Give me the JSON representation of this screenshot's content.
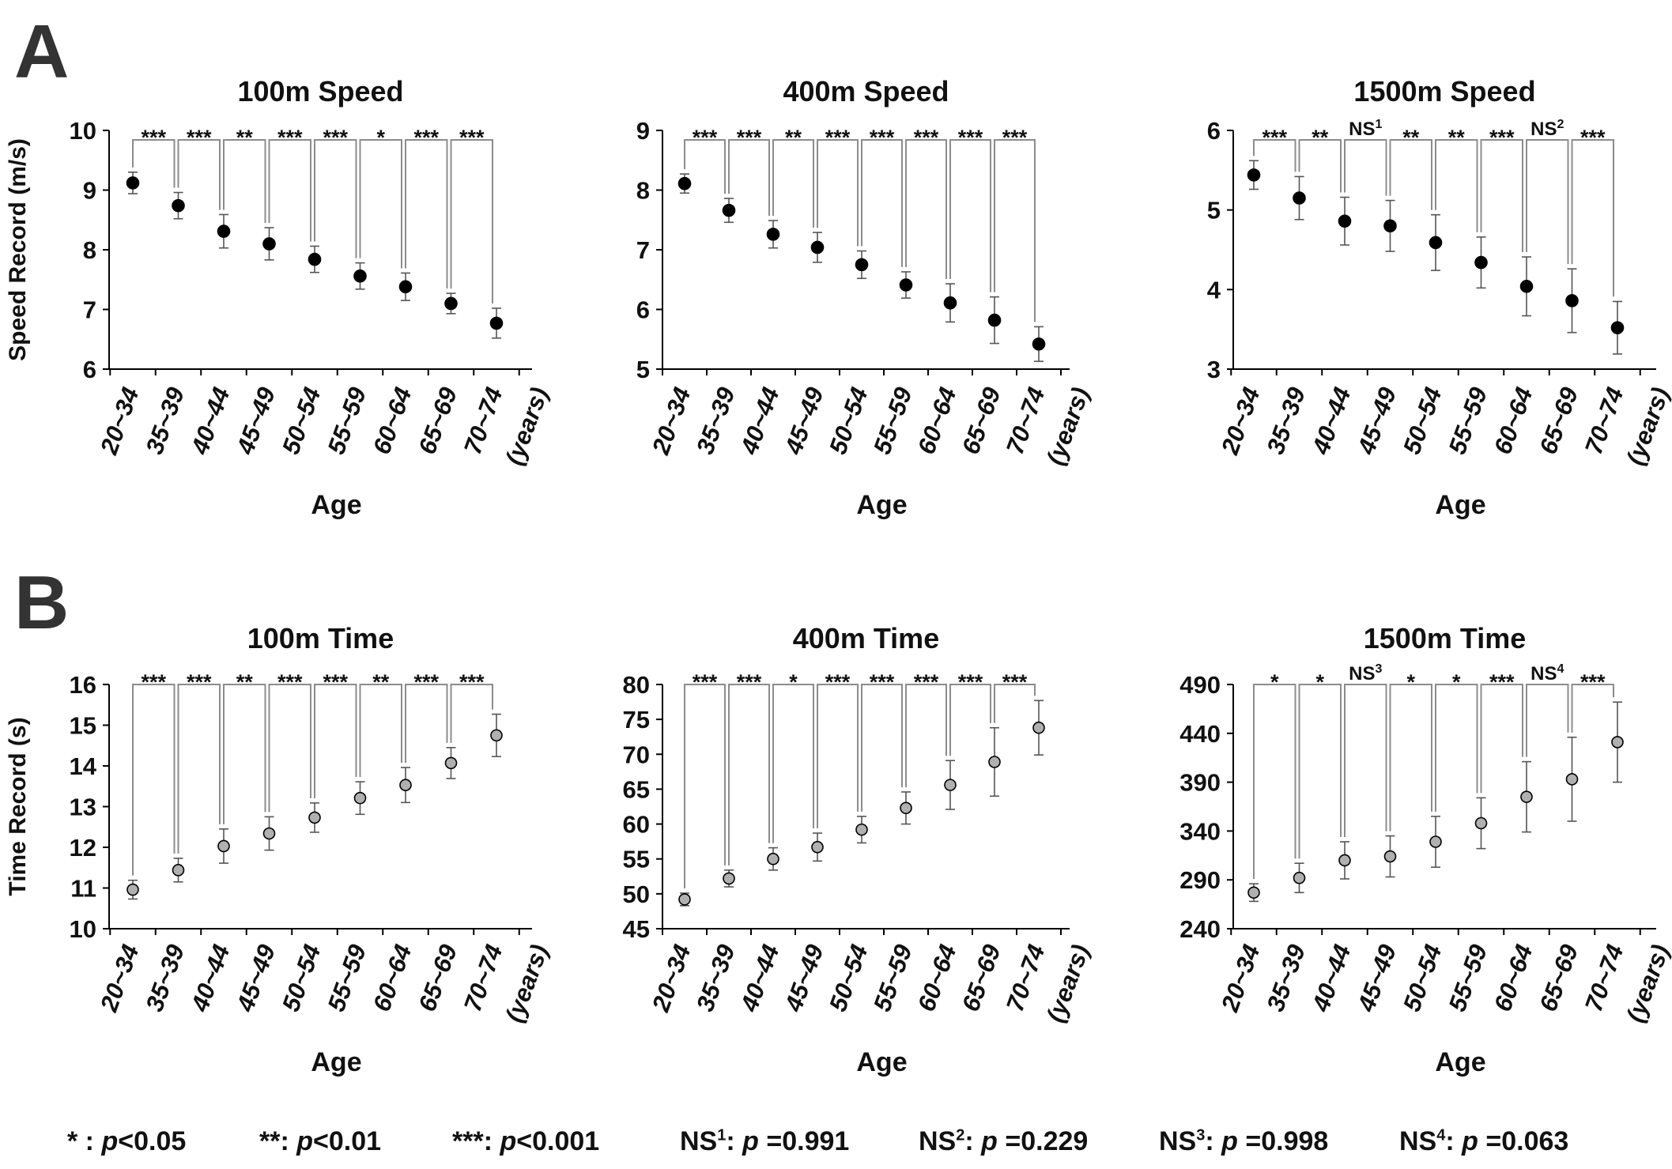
{
  "panels": {
    "A": "A",
    "B": "B"
  },
  "x_tick_labels": [
    "20~34",
    "35~39",
    "40~44",
    "45~49",
    "50~54",
    "55~59",
    "60~64",
    "65~69",
    "70~74",
    "(years)"
  ],
  "xlabel": "Age",
  "colors": {
    "speed_marker": "#000000",
    "time_marker": "#b0b0b0",
    "bracket": "#8c8c8c",
    "text": "#111111"
  },
  "footnote": [
    {
      "label": "* : ",
      "p": "p",
      "value": "<0.05"
    },
    {
      "label": "**: ",
      "p": "p",
      "value": "<0.01"
    },
    {
      "label": "***: ",
      "p": "p",
      "value": "<0.001"
    },
    {
      "label": "NS",
      "sup": "1",
      "tail": ": ",
      "p": "p",
      "value": " =0.991"
    },
    {
      "label": "NS",
      "sup": "2",
      "tail": ": ",
      "p": "p",
      "value": " =0.229"
    },
    {
      "label": "NS",
      "sup": "3",
      "tail": ": ",
      "p": "p",
      "value": " =0.998"
    },
    {
      "label": "NS",
      "sup": "4",
      "tail": ": ",
      "p": "p",
      "value": " =0.063"
    }
  ],
  "chart_data": [
    {
      "type": "scatter",
      "title": "100m Speed",
      "ylabel": "Speed Record (m/s)",
      "xlabel": "Age",
      "categories": [
        "20~34",
        "35~39",
        "40~44",
        "45~49",
        "50~54",
        "55~59",
        "60~64",
        "65~69",
        "70~74"
      ],
      "ylim": [
        6,
        10
      ],
      "yticks": [
        6,
        7,
        8,
        9,
        10
      ],
      "marker": "filled-black",
      "values": [
        9.12,
        8.74,
        8.31,
        8.1,
        7.84,
        7.56,
        7.38,
        7.1,
        6.77
      ],
      "error": [
        0.18,
        0.22,
        0.28,
        0.27,
        0.22,
        0.22,
        0.23,
        0.17,
        0.25
      ],
      "significance": [
        "***",
        "***",
        "**",
        "***",
        "***",
        "*",
        "***",
        "***"
      ]
    },
    {
      "type": "scatter",
      "title": "400m Speed",
      "ylabel": "",
      "xlabel": "Age",
      "categories": [
        "20~34",
        "35~39",
        "40~44",
        "45~49",
        "50~54",
        "55~59",
        "60~64",
        "65~69",
        "70~74"
      ],
      "ylim": [
        5,
        9
      ],
      "yticks": [
        5,
        6,
        7,
        8,
        9
      ],
      "marker": "filled-black",
      "values": [
        8.11,
        7.66,
        7.26,
        7.04,
        6.75,
        6.41,
        6.11,
        5.82,
        5.42
      ],
      "error": [
        0.16,
        0.2,
        0.23,
        0.25,
        0.23,
        0.22,
        0.32,
        0.39,
        0.29
      ],
      "significance": [
        "***",
        "***",
        "**",
        "***",
        "***",
        "***",
        "***",
        "***"
      ]
    },
    {
      "type": "scatter",
      "title": "1500m Speed",
      "ylabel": "",
      "xlabel": "Age",
      "categories": [
        "20~34",
        "35~39",
        "40~44",
        "45~49",
        "50~54",
        "55~59",
        "60~64",
        "65~69",
        "70~74"
      ],
      "ylim": [
        3,
        6
      ],
      "yticks": [
        3,
        4,
        5,
        6
      ],
      "marker": "filled-black",
      "values": [
        5.44,
        5.15,
        4.86,
        4.8,
        4.59,
        4.34,
        4.04,
        3.86,
        3.52
      ],
      "error": [
        0.18,
        0.27,
        0.3,
        0.32,
        0.35,
        0.32,
        0.37,
        0.4,
        0.33
      ],
      "significance": [
        "***",
        "**",
        "NS|1",
        "**",
        "**",
        "***",
        "NS|2",
        "***"
      ]
    },
    {
      "type": "scatter",
      "title": "100m Time",
      "ylabel": "Time Record (s)",
      "xlabel": "Age",
      "categories": [
        "20~34",
        "35~39",
        "40~44",
        "45~49",
        "50~54",
        "55~59",
        "60~64",
        "65~69",
        "70~74"
      ],
      "ylim": [
        10,
        16
      ],
      "yticks": [
        10,
        11,
        12,
        13,
        14,
        15,
        16
      ],
      "marker": "filled-gray",
      "values": [
        10.96,
        11.44,
        12.03,
        12.34,
        12.73,
        13.21,
        13.53,
        14.07,
        14.75
      ],
      "error": [
        0.23,
        0.29,
        0.42,
        0.41,
        0.36,
        0.4,
        0.43,
        0.38,
        0.52
      ],
      "significance": [
        "***",
        "***",
        "**",
        "***",
        "***",
        "**",
        "***",
        "***"
      ]
    },
    {
      "type": "scatter",
      "title": "400m Time",
      "ylabel": "",
      "xlabel": "Age",
      "categories": [
        "20~34",
        "35~39",
        "40~44",
        "45~49",
        "50~54",
        "55~59",
        "60~64",
        "65~69",
        "70~74"
      ],
      "ylim": [
        45,
        80
      ],
      "yticks": [
        45,
        50,
        55,
        60,
        65,
        70,
        75,
        80
      ],
      "marker": "filled-gray",
      "values": [
        49.2,
        52.2,
        55.0,
        56.7,
        59.2,
        62.3,
        65.6,
        68.9,
        73.8
      ],
      "error": [
        0.9,
        1.2,
        1.6,
        2.0,
        1.9,
        2.3,
        3.5,
        4.9,
        3.9
      ],
      "significance": [
        "***",
        "***",
        "*",
        "***",
        "***",
        "***",
        "***",
        "***"
      ]
    },
    {
      "type": "scatter",
      "title": "1500m Time",
      "ylabel": "",
      "xlabel": "Age",
      "categories": [
        "20~34",
        "35~39",
        "40~44",
        "45~49",
        "50~54",
        "55~59",
        "60~64",
        "65~69",
        "70~74"
      ],
      "ylim": [
        240,
        490
      ],
      "yticks": [
        240,
        290,
        340,
        390,
        440,
        490
      ],
      "marker": "filled-gray",
      "values": [
        277,
        292,
        310,
        314,
        329,
        348,
        375,
        393,
        431
      ],
      "error": [
        9,
        15,
        19,
        21,
        26,
        26,
        36,
        43,
        41
      ],
      "significance": [
        "*",
        "*",
        "NS|3",
        "*",
        "*",
        "***",
        "NS|4",
        "***"
      ]
    }
  ]
}
